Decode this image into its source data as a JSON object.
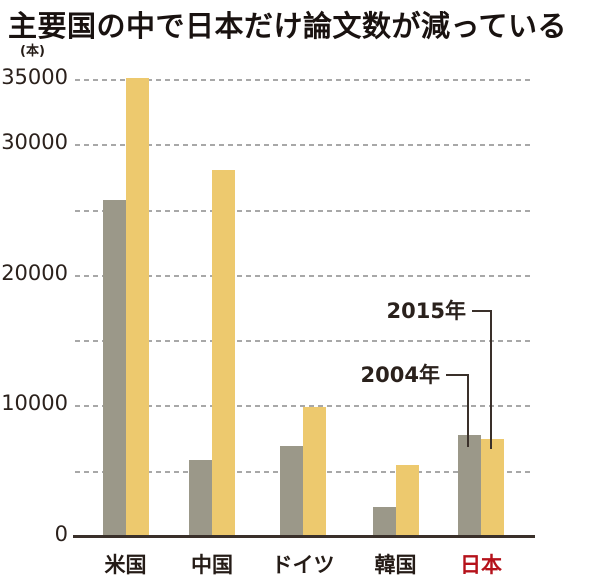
{
  "title": "主要国の中で日本だけ論文数が減っている",
  "unit_label": "(本)",
  "colors": {
    "background": "#ffffff",
    "text": "#251c17",
    "title_text": "#191210",
    "axis_line": "#3a302a",
    "gridline": "#a8a8a8",
    "highlight_red": "#b5121b"
  },
  "chart_data": {
    "type": "bar",
    "title": "主要国の中で日本だけ論文数が減っている",
    "unit": "(本)",
    "xlabel": "",
    "ylabel": "(本)",
    "categories": [
      "米国",
      "中国",
      "ドイツ",
      "韓国",
      "日本"
    ],
    "series": [
      {
        "name": "2004年",
        "color": "#9b9889",
        "values": [
          25700,
          5800,
          6900,
          2200,
          7700
        ]
      },
      {
        "name": "2015年",
        "color": "#edc96e",
        "values": [
          35100,
          28000,
          9900,
          5400,
          7400
        ]
      }
    ],
    "ylim": [
      0,
      35000
    ],
    "yticks_labeled": [
      0,
      10000,
      20000,
      30000,
      35000
    ],
    "gridline_ticks": [
      5000,
      10000,
      15000,
      20000,
      25000,
      30000,
      35000
    ],
    "grid_style": "dashed",
    "legend_position": "callout-annotations-over-japan-bars",
    "highlight_category": "日本"
  }
}
